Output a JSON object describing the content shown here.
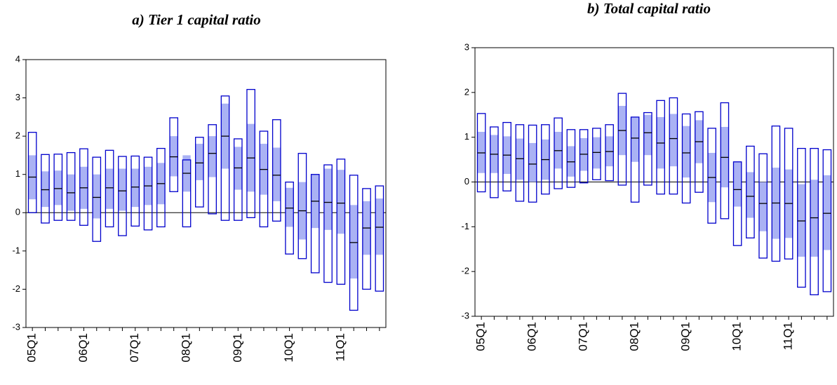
{
  "chart_data": [
    {
      "type": "box",
      "title": "a) Tier 1 capital ratio",
      "categories": [
        "05Q1",
        null,
        null,
        null,
        "06Q1",
        null,
        null,
        null,
        "07Q1",
        null,
        null,
        null,
        "08Q1",
        null,
        null,
        null,
        "09Q1",
        null,
        null,
        null,
        "10Q1",
        null,
        null,
        null,
        "11Q1",
        null,
        null,
        null
      ],
      "high": [
        2.1,
        1.52,
        1.53,
        1.57,
        1.67,
        1.45,
        1.63,
        1.47,
        1.48,
        1.45,
        1.68,
        2.48,
        1.38,
        1.97,
        2.3,
        3.05,
        1.93,
        3.22,
        2.13,
        2.43,
        0.8,
        1.55,
        1.0,
        1.25,
        1.4,
        0.98,
        0.63,
        0.7
      ],
      "low": [
        0,
        -0.27,
        -0.2,
        -0.2,
        -0.33,
        -0.75,
        -0.37,
        -0.6,
        -0.35,
        -0.45,
        -0.37,
        0.55,
        -0.37,
        0.15,
        -0.03,
        -0.2,
        -0.2,
        -0.13,
        -0.37,
        -0.22,
        -1.08,
        -1.2,
        -1.57,
        -1.82,
        -1.87,
        -2.55,
        -2.0,
        -2.05
      ],
      "q_high": [
        1.5,
        1.08,
        1.1,
        1.0,
        1.2,
        1.0,
        1.15,
        1.15,
        1.15,
        1.2,
        1.3,
        2.0,
        1.5,
        1.8,
        2.0,
        2.85,
        1.72,
        2.32,
        1.8,
        1.7,
        0.65,
        0.8,
        1.0,
        1.15,
        1.12,
        0.2,
        0.3,
        0.37
      ],
      "q_low": [
        0.35,
        0.15,
        0.2,
        0.05,
        0.1,
        -0.15,
        0.1,
        0.05,
        0.15,
        0.2,
        0.22,
        0.95,
        0.55,
        0.85,
        0.93,
        1.15,
        0.6,
        0.55,
        0.47,
        0.3,
        -0.37,
        -0.7,
        -0.4,
        -0.45,
        -0.55,
        -1.72,
        -1.1,
        -1.1
      ],
      "median": [
        0.93,
        0.6,
        0.63,
        0.52,
        0.65,
        0.4,
        0.65,
        0.57,
        0.67,
        0.7,
        0.76,
        1.46,
        1.03,
        1.3,
        1.55,
        2.0,
        1.17,
        1.43,
        1.13,
        0.98,
        0.12,
        0.05,
        0.3,
        0.27,
        0.25,
        -0.78,
        -0.4,
        -0.38
      ],
      "ylim": [
        -3,
        4
      ],
      "yticks": [
        -3,
        -2,
        -1,
        0,
        1,
        2,
        3,
        4
      ],
      "box_color": "#0000cc",
      "band_color": "#aab2f4",
      "median_color": "#000000",
      "zero_line": true
    },
    {
      "type": "box",
      "title": "b) Total capital ratio",
      "categories": [
        "05Q1",
        null,
        null,
        null,
        "06Q1",
        null,
        null,
        null,
        "07Q1",
        null,
        null,
        null,
        "08Q1",
        null,
        null,
        null,
        "09Q1",
        null,
        null,
        null,
        "10Q1",
        null,
        null,
        null,
        "11Q1",
        null,
        null,
        null
      ],
      "high": [
        1.53,
        1.23,
        1.33,
        1.28,
        1.27,
        1.28,
        1.43,
        1.17,
        1.17,
        1.2,
        1.28,
        1.98,
        1.45,
        1.55,
        1.82,
        1.88,
        1.52,
        1.57,
        1.2,
        1.77,
        0.45,
        0.8,
        0.63,
        1.25,
        1.2,
        0.75,
        0.75,
        0.72
      ],
      "low": [
        -0.22,
        -0.35,
        -0.2,
        -0.43,
        -0.45,
        -0.27,
        -0.15,
        -0.12,
        -0.02,
        0.05,
        0.03,
        -0.07,
        -0.45,
        -0.07,
        -0.27,
        -0.27,
        -0.47,
        -0.23,
        -0.92,
        -0.82,
        -1.42,
        -1.25,
        -1.7,
        -1.77,
        -1.72,
        -2.35,
        -2.52,
        -2.45
      ],
      "q_high": [
        1.12,
        1.05,
        1.02,
        0.97,
        0.87,
        0.95,
        1.12,
        0.8,
        0.98,
        1.0,
        1.02,
        1.7,
        1.45,
        1.5,
        1.45,
        1.52,
        1.25,
        1.38,
        0.65,
        1.23,
        0.45,
        0.22,
        0.0,
        0.32,
        0.28,
        -0.05,
        0.05,
        0.15
      ],
      "q_low": [
        0.2,
        0.2,
        0.18,
        0.05,
        0.0,
        0.05,
        0.3,
        0.12,
        0.25,
        0.3,
        0.35,
        0.6,
        0.45,
        0.6,
        0.3,
        0.35,
        0.1,
        0.42,
        -0.45,
        -0.12,
        -0.55,
        -0.8,
        -1.1,
        -1.27,
        -1.25,
        -1.67,
        -1.67,
        -1.52
      ],
      "median": [
        0.65,
        0.62,
        0.6,
        0.52,
        0.4,
        0.5,
        0.7,
        0.45,
        0.62,
        0.66,
        0.68,
        1.15,
        0.98,
        1.1,
        0.87,
        0.97,
        0.65,
        0.9,
        0.1,
        0.55,
        -0.17,
        -0.32,
        -0.48,
        -0.47,
        -0.48,
        -0.87,
        -0.8,
        -0.7
      ],
      "ylim": [
        -3,
        3
      ],
      "yticks": [
        -3,
        -2,
        -1,
        0,
        1,
        2,
        3
      ],
      "box_color": "#0000cc",
      "band_color": "#aab2f4",
      "median_color": "#000000",
      "zero_line": true
    }
  ]
}
